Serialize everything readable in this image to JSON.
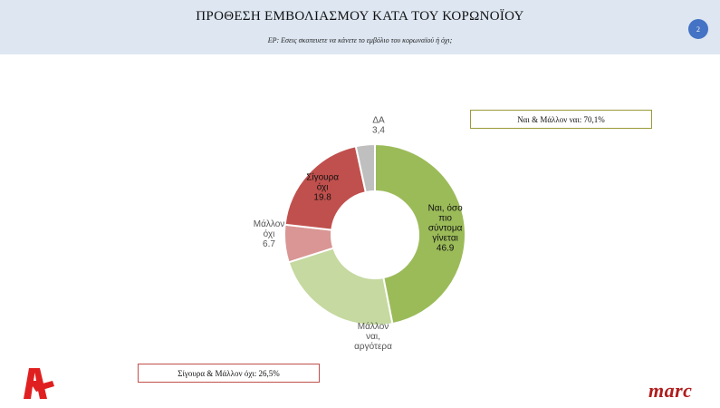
{
  "header": {
    "title": "ΠΡΟΘΕΣΗ ΕΜΒΟΛΙΑΣΜΟΥ ΚΑΤΑ ΤΟΥ ΚΟΡΩΝΟΪΟΥ",
    "subtitle": "ΕΡ: Εσεις σκοπευετε να κάνετε το εμβόλιο του κορωναϊού ή όχι;",
    "page_number": "2"
  },
  "callouts": {
    "yes_total": "Ναι & Μάλλον ναι: 70,1%",
    "no_total": "Σίγουρα & Μάλλον όχι: 26,5%"
  },
  "brand": {
    "marc": "marc",
    "logo_icon": "alpha-tv-logo-icon"
  },
  "colors": {
    "yes_sure": "#9bbb59",
    "yes_later": "#c5d9a0",
    "no_maybe": "#d99694",
    "no_sure": "#c0504d",
    "dk": "#bfbfbf",
    "accent": "#4472c4"
  },
  "chart_data": {
    "type": "pie",
    "subtype": "donut",
    "slices": [
      {
        "label_lines": [
          "Ναι, όσο",
          "πιο",
          "σύντομα",
          "γίνεται"
        ],
        "value": 46.9,
        "value_label": "46.9",
        "color": "#9bbb59",
        "label_inside": true
      },
      {
        "label_lines": [
          "Μάλλον",
          "ναι,",
          "αργότερα"
        ],
        "value": 23.2,
        "value_label": "",
        "color": "#c5d9a0",
        "label_inside": false
      },
      {
        "label_lines": [
          "Μάλλον",
          "όχι"
        ],
        "value": 6.7,
        "value_label": "6.7",
        "color": "#d99694",
        "label_inside": false
      },
      {
        "label_lines": [
          "Σίγουρα",
          "όχι"
        ],
        "value": 19.8,
        "value_label": "19.8",
        "color": "#c0504d",
        "label_inside": true
      },
      {
        "label_lines": [
          "ΔΑ"
        ],
        "value": 3.4,
        "value_label": "3,4",
        "color": "#bfbfbf",
        "label_inside": false
      }
    ]
  }
}
